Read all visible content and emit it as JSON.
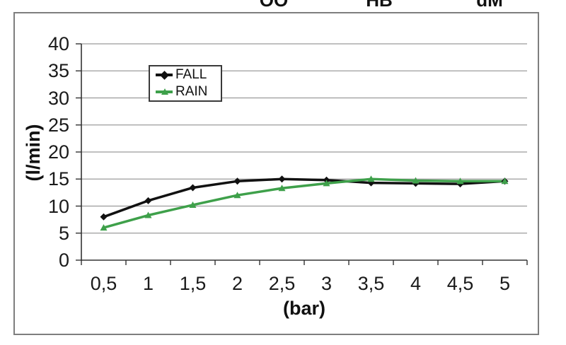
{
  "page": {
    "top_fragments": [
      {
        "text": "OO"
      },
      {
        "text": "HB"
      },
      {
        "text": "dM"
      }
    ]
  },
  "chart_data": {
    "type": "line",
    "title": "",
    "xlabel": "(bar)",
    "ylabel": "(l/min)",
    "x": [
      0.5,
      1,
      1.5,
      2,
      2.5,
      3,
      3.5,
      4,
      4.5,
      5
    ],
    "x_tick_labels": [
      "0,5",
      "1",
      "1,5",
      "2",
      "2,5",
      "3",
      "3,5",
      "4",
      "4,5",
      "5"
    ],
    "y_ticks": [
      0,
      5,
      10,
      15,
      20,
      25,
      30,
      35,
      40
    ],
    "ylim": [
      0,
      40
    ],
    "grid": "horizontal",
    "legend_position": "top-left-inside",
    "colors": {
      "fall": "#111111",
      "rain": "#3ea04a",
      "gridline": "#9b9b9b",
      "axis": "#333333",
      "frame_border": "#7e7e7e"
    },
    "series": [
      {
        "name": "FALL",
        "color": "#111111",
        "marker": "diamond",
        "values": [
          8,
          11,
          13.4,
          14.6,
          15,
          14.8,
          14.3,
          14.2,
          14.1,
          14.6
        ]
      },
      {
        "name": "RAIN",
        "color": "#3ea04a",
        "marker": "triangle",
        "values": [
          6,
          8.3,
          10.2,
          12,
          13.3,
          14.2,
          15,
          14.7,
          14.6,
          14.6
        ]
      }
    ]
  }
}
